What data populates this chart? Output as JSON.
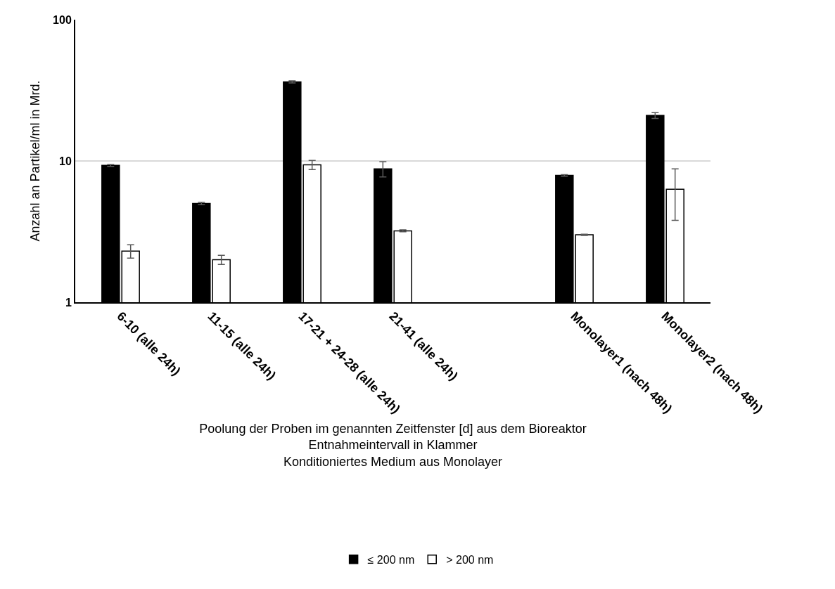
{
  "chart_data": {
    "type": "bar",
    "xlabel": "Poolung der Proben im genannten Zeitfenster [d] aus dem Bioreaktor\nEntnahmeintervall in Klammer\nKonditioniertes Medium aus Monolayer",
    "ylabel": "Anzahl an Partikel/ml in Mrd.",
    "categories": [
      "6-10 (alle 24h)",
      "11-15 (alle 24h)",
      "17-21 + 24-28 (alle 24h)",
      "21-41 (alle 24h)",
      null,
      "Monolayer1 (nach 48h)",
      "Monolayer2 (nach 48h)"
    ],
    "series": [
      {
        "name": "≤ 200 nm",
        "color": "#000000",
        "values": [
          9.3,
          5.0,
          36.3,
          8.8,
          null,
          7.9,
          21.0
        ],
        "errors": [
          0.15,
          0.1,
          0.6,
          1.1,
          null,
          0.1,
          1.0
        ]
      },
      {
        "name": "> 200 nm",
        "color": "#ffffff",
        "values": [
          2.3,
          2.0,
          9.4,
          3.2,
          null,
          3.0,
          6.3
        ],
        "errors": [
          0.25,
          0.15,
          0.7,
          0.05,
          null,
          0.03,
          2.5
        ]
      }
    ],
    "log": "y",
    "ylim": [
      1,
      100
    ],
    "yticks": [
      1,
      10,
      100
    ],
    "grid": "y",
    "legend": "bottom"
  }
}
